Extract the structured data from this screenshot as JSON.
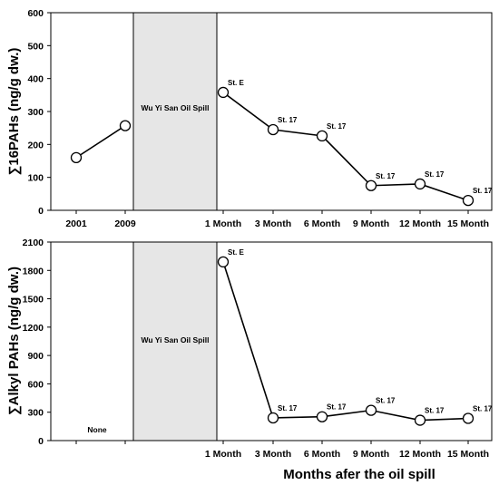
{
  "x_axis_title": "Months afer the oil spill",
  "chart_data": [
    {
      "type": "line",
      "ylabel": "∑16PAHs (ng/g dw.)",
      "ylim": [
        0,
        600
      ],
      "yticks": [
        0,
        100,
        200,
        300,
        400,
        500,
        600
      ],
      "categories": [
        "2001",
        "2009",
        "1 Month",
        "3 Month",
        "6 Month",
        "9 Month",
        "12 Month",
        "15 Month"
      ],
      "segments": [
        {
          "points": [
            {
              "x": "2001",
              "y": 160,
              "label": ""
            },
            {
              "x": "2009",
              "y": 257,
              "label": ""
            }
          ]
        },
        {
          "points": [
            {
              "x": "1 Month",
              "y": 358,
              "label": "St. E"
            },
            {
              "x": "3 Month",
              "y": 245,
              "label": "St. 17"
            },
            {
              "x": "6 Month",
              "y": 226,
              "label": "St. 17"
            },
            {
              "x": "9 Month",
              "y": 75,
              "label": "St. 17"
            },
            {
              "x": "12 Month",
              "y": 80,
              "label": "St. 17"
            },
            {
              "x": "15 Month",
              "y": 30,
              "label": "St. 17"
            }
          ]
        }
      ],
      "spill_label": "Wu Yi San Oil Spill",
      "no_data_label": ""
    },
    {
      "type": "line",
      "ylabel": "∑Alkyl PAHs (ng/g dw.)",
      "ylim": [
        0,
        2100
      ],
      "yticks": [
        0,
        300,
        600,
        900,
        1200,
        1500,
        1800,
        2100
      ],
      "categories": [
        "",
        "",
        "1 Month",
        "3 Month",
        "6 Month",
        "9 Month",
        "12 Month",
        "15 Month"
      ],
      "segments": [
        {
          "points": [
            {
              "x": "1 Month",
              "y": 1890,
              "label": "St. E"
            },
            {
              "x": "3 Month",
              "y": 240,
              "label": "St. 17"
            },
            {
              "x": "6 Month",
              "y": 252,
              "label": "St. 17"
            },
            {
              "x": "9 Month",
              "y": 320,
              "label": "St. 17"
            },
            {
              "x": "12 Month",
              "y": 215,
              "label": "St. 17"
            },
            {
              "x": "15 Month",
              "y": 235,
              "label": "St. 17"
            }
          ]
        }
      ],
      "spill_label": "Wu Yi San Oil Spill",
      "no_data_label": "None"
    }
  ]
}
